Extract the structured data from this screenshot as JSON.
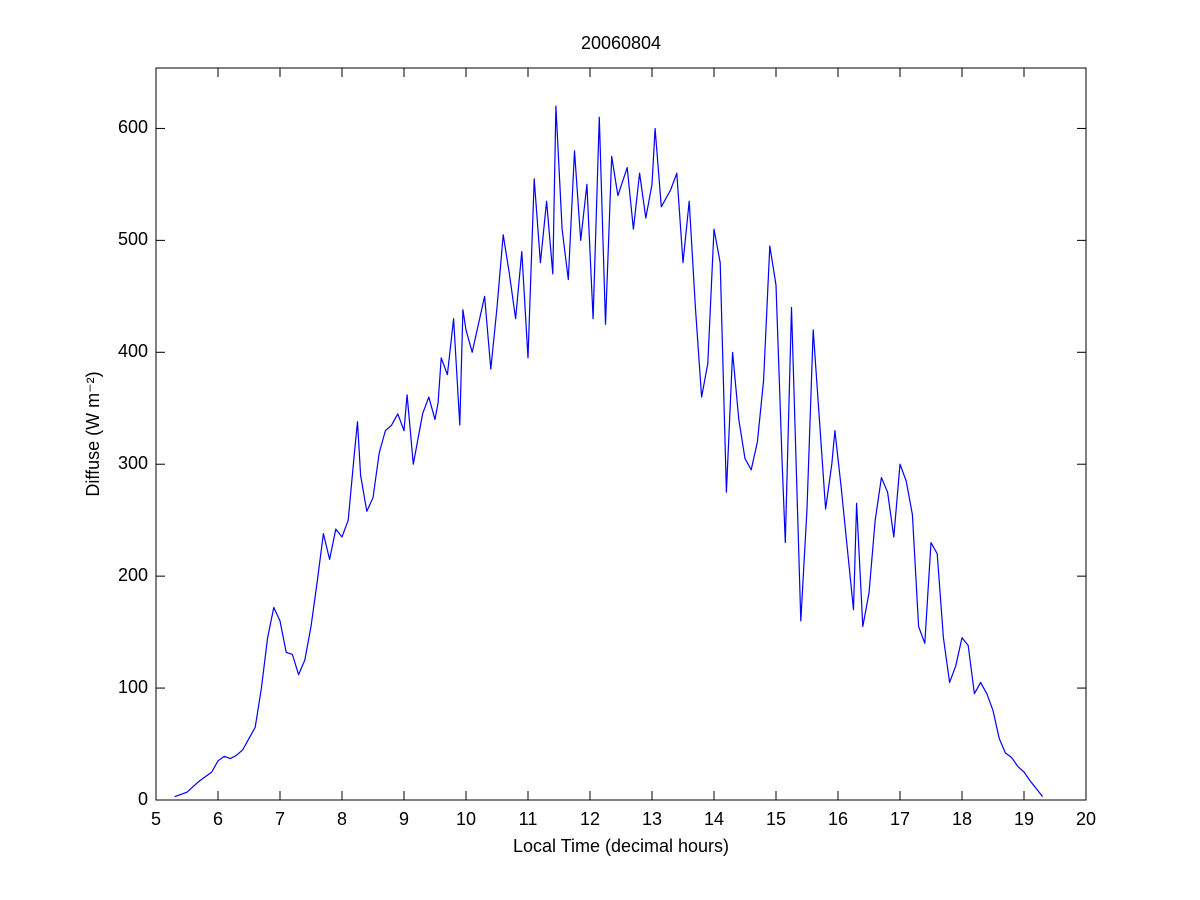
{
  "chart_data": {
    "type": "line",
    "title": "20060804",
    "xlabel": "Local Time (decimal hours)",
    "ylabel": "Diffuse (W m⁻²)",
    "x": [
      5.3,
      5.5,
      5.7,
      5.9,
      6.0,
      6.1,
      6.2,
      6.3,
      6.4,
      6.5,
      6.6,
      6.7,
      6.8,
      6.9,
      7.0,
      7.1,
      7.2,
      7.3,
      7.4,
      7.5,
      7.6,
      7.7,
      7.8,
      7.9,
      8.0,
      8.1,
      8.2,
      8.25,
      8.3,
      8.4,
      8.5,
      8.6,
      8.7,
      8.8,
      8.9,
      9.0,
      9.05,
      9.15,
      9.3,
      9.4,
      9.5,
      9.55,
      9.6,
      9.7,
      9.8,
      9.9,
      9.95,
      10.0,
      10.1,
      10.2,
      10.3,
      10.4,
      10.5,
      10.6,
      10.7,
      10.8,
      10.9,
      11.0,
      11.1,
      11.2,
      11.3,
      11.4,
      11.45,
      11.55,
      11.65,
      11.75,
      11.85,
      11.95,
      12.05,
      12.15,
      12.25,
      12.35,
      12.45,
      12.6,
      12.7,
      12.8,
      12.9,
      13.0,
      13.05,
      13.15,
      13.3,
      13.4,
      13.5,
      13.6,
      13.7,
      13.8,
      13.9,
      14.0,
      14.1,
      14.2,
      14.3,
      14.4,
      14.5,
      14.6,
      14.7,
      14.8,
      14.9,
      15.0,
      15.1,
      15.15,
      15.25,
      15.4,
      15.5,
      15.6,
      15.7,
      15.8,
      15.9,
      15.95,
      16.05,
      16.15,
      16.25,
      16.3,
      16.4,
      16.5,
      16.6,
      16.7,
      16.8,
      16.9,
      17.0,
      17.1,
      17.2,
      17.3,
      17.4,
      17.5,
      17.6,
      17.7,
      17.8,
      17.9,
      18.0,
      18.1,
      18.2,
      18.3,
      18.4,
      18.5,
      18.6,
      18.7,
      18.8,
      18.9,
      19.0,
      19.1,
      19.2,
      19.3
    ],
    "series": [
      {
        "color": "#0000ff",
        "values": [
          3,
          7,
          17,
          25,
          35,
          39,
          37,
          40,
          45,
          55,
          65,
          100,
          145,
          172,
          160,
          132,
          130,
          112,
          125,
          155,
          195,
          238,
          215,
          242,
          235,
          250,
          310,
          338,
          290,
          258,
          270,
          310,
          330,
          335,
          345,
          330,
          362,
          300,
          345,
          360,
          340,
          355,
          395,
          380,
          430,
          335,
          438,
          420,
          400,
          425,
          450,
          385,
          440,
          505,
          470,
          430,
          490,
          395,
          555,
          480,
          535,
          470,
          620,
          510,
          465,
          580,
          500,
          550,
          430,
          610,
          425,
          575,
          540,
          565,
          510,
          560,
          520,
          550,
          600,
          530,
          545,
          560,
          480,
          535,
          440,
          360,
          390,
          510,
          480,
          275,
          400,
          340,
          305,
          295,
          320,
          375,
          495,
          460,
          300,
          230,
          440,
          160,
          260,
          420,
          340,
          260,
          300,
          330,
          280,
          225,
          170,
          265,
          155,
          185,
          250,
          288,
          275,
          235,
          300,
          285,
          255,
          155,
          140,
          230,
          220,
          145,
          105,
          120,
          145,
          138,
          95,
          105,
          95,
          80,
          55,
          42,
          38,
          30,
          25,
          17,
          10,
          3
        ]
      }
    ],
    "xlim": [
      5,
      20
    ],
    "ylim": [
      0,
      654
    ],
    "xticks": [
      5,
      6,
      7,
      8,
      9,
      10,
      11,
      12,
      13,
      14,
      15,
      16,
      17,
      18,
      19,
      20
    ],
    "yticks": [
      0,
      100,
      200,
      300,
      400,
      500,
      600
    ],
    "grid": false
  }
}
